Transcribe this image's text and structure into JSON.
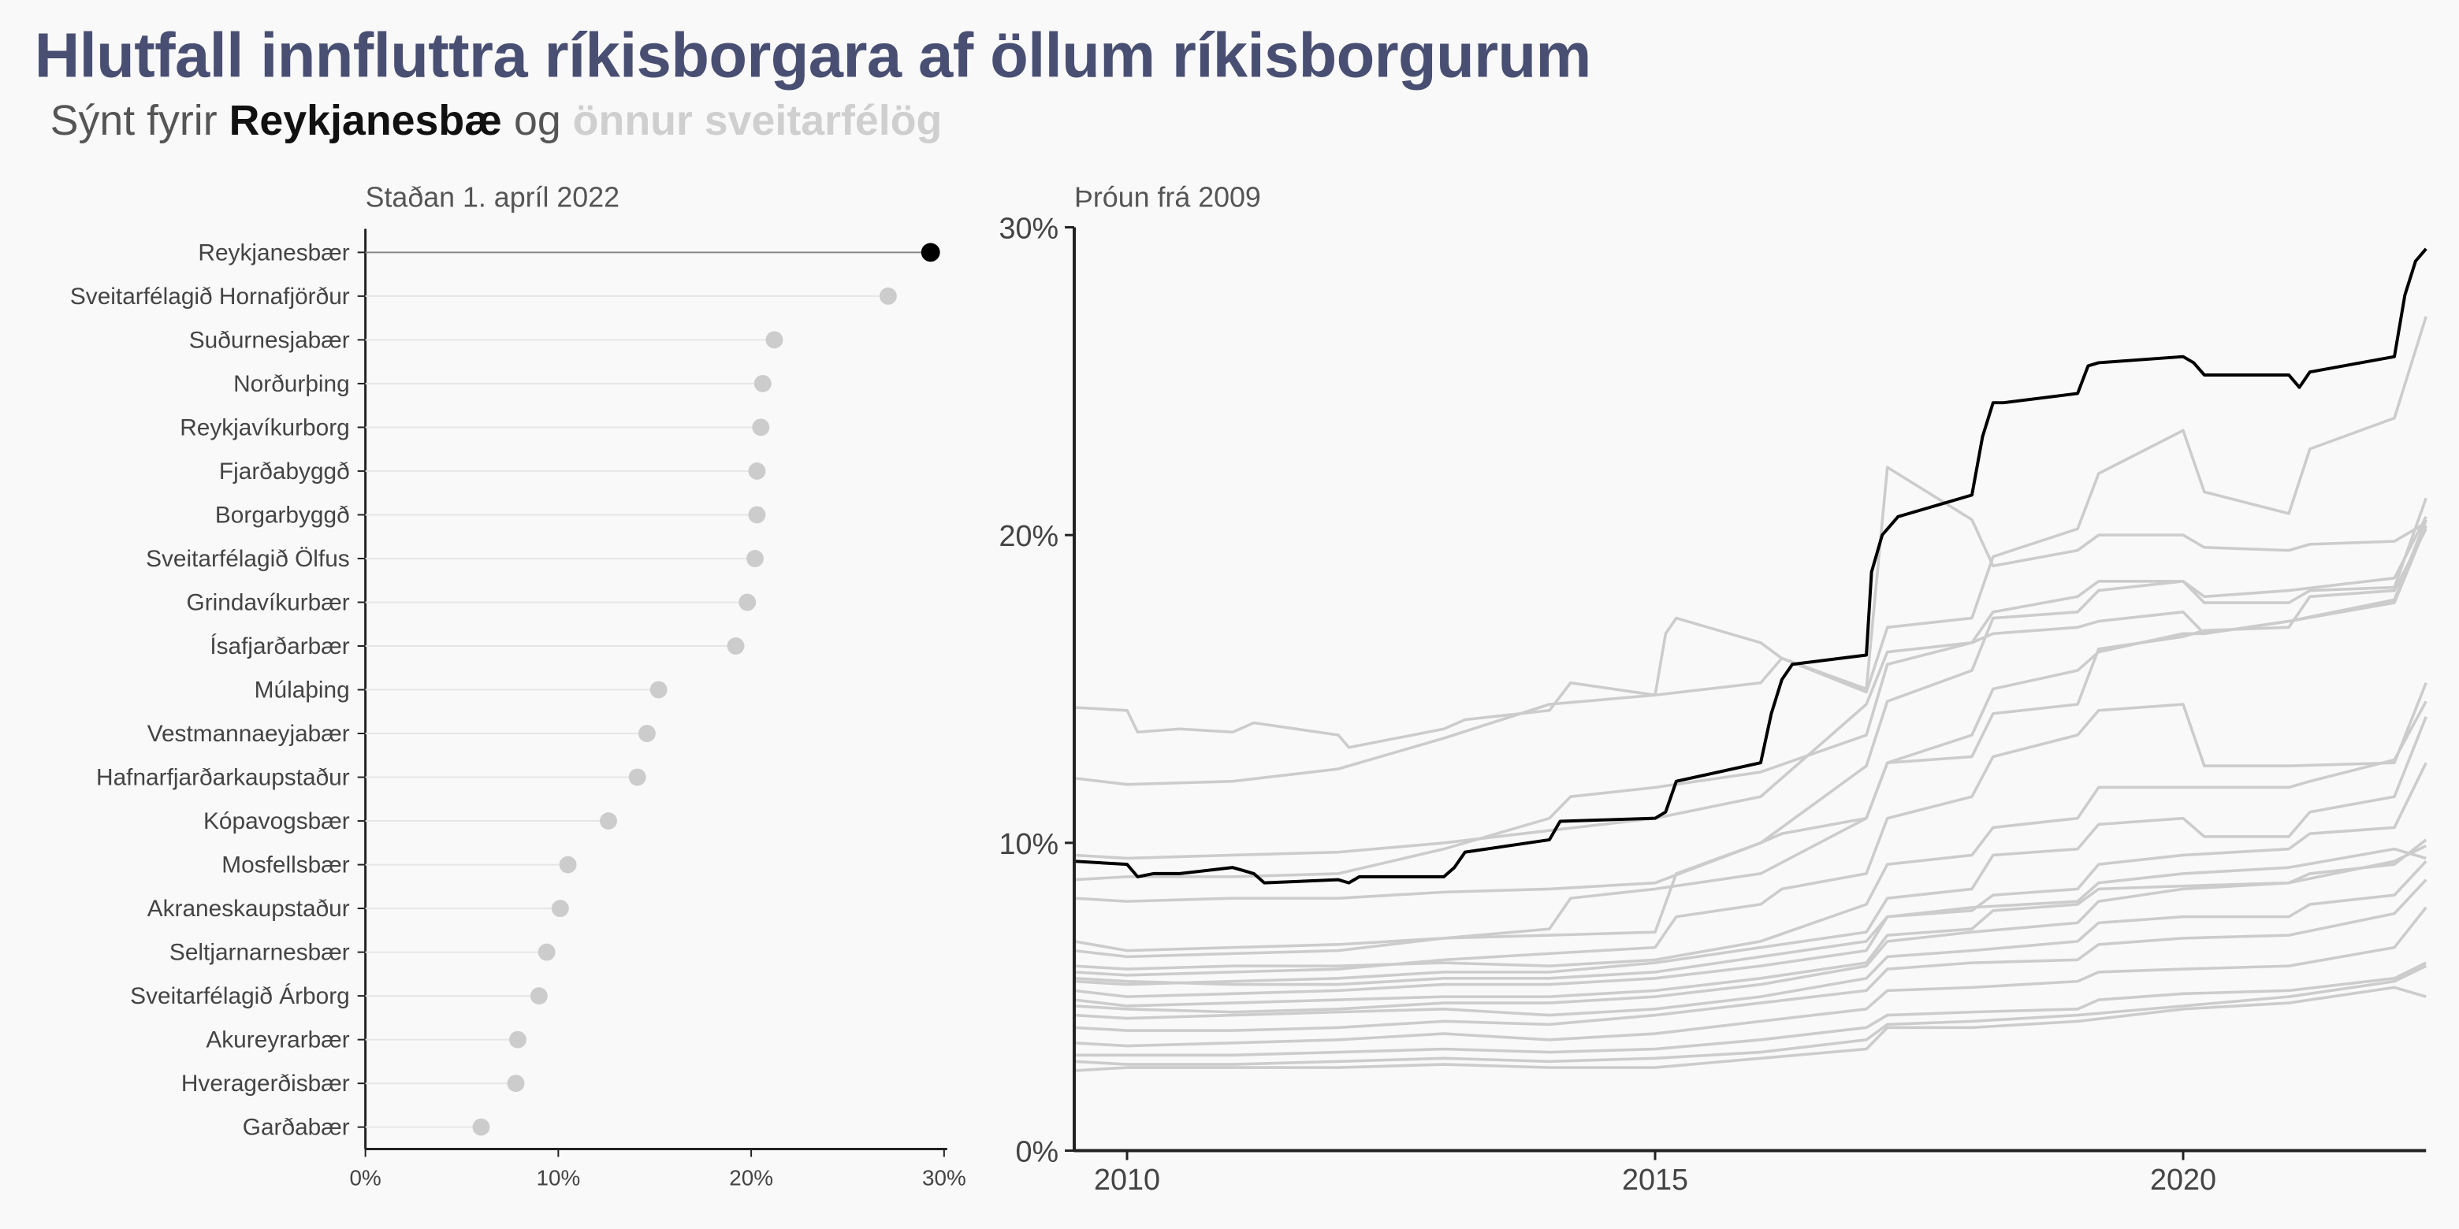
{
  "title": "Hlutfall innfluttra ríkisborgara af öllum ríkisborgurum",
  "subtitle": {
    "prefix": "Sýnt fyrir",
    "highlight": "Reykjanesbæ",
    "middle": "og",
    "muted": "önnur sveitarfélög"
  },
  "colors": {
    "highlight": "#000000",
    "other": "#cccccc",
    "title": "#494f72"
  },
  "chart_data": [
    {
      "type": "lollipop",
      "title": "Staðan 1. apríl 2022",
      "xlim": [
        0,
        30
      ],
      "xticks": [
        "0%",
        "10%",
        "20%",
        "30%"
      ],
      "xtick_values": [
        0,
        10,
        20,
        30
      ],
      "highlight": "Reykjanesbær",
      "categories": [
        "Reykjanesbær",
        "Sveitarfélagið Hornafjörður",
        "Suðurnesjabær",
        "Norðurþing",
        "Reykjavíkurborg",
        "Fjarðabyggð",
        "Borgarbyggð",
        "Sveitarfélagið Ölfus",
        "Grindavíkurbær",
        "Ísafjarðarbær",
        "Múlaþing",
        "Vestmannaeyjabær",
        "Hafnarfjarðarkaupstaður",
        "Kópavogsbær",
        "Mosfellsbær",
        "Akraneskaupstaður",
        "Seltjarnarnesbær",
        "Sveitarfélagið Árborg",
        "Akureyrarbær",
        "Hveragerðisbær",
        "Garðabær"
      ],
      "values": [
        29.3,
        27.1,
        21.2,
        20.6,
        20.5,
        20.3,
        20.3,
        20.2,
        19.8,
        19.2,
        15.2,
        14.6,
        14.1,
        12.6,
        10.5,
        10.1,
        9.4,
        9.0,
        7.9,
        7.8,
        6.0
      ]
    },
    {
      "type": "line",
      "title": "Þróun frá 2009",
      "xlim": [
        2009.5,
        2022.3
      ],
      "ylim": [
        0,
        30
      ],
      "yticks": [
        "0%",
        "10%",
        "20%",
        "30%"
      ],
      "ytick_values": [
        0,
        10,
        20,
        30
      ],
      "xticks": [
        "2010",
        "2015",
        "2020"
      ],
      "xtick_values": [
        2010,
        2015,
        2020
      ],
      "highlight_series": {
        "name": "Reykjanesbær",
        "x": [
          2009.5,
          2010.0,
          2010.1,
          2010.25,
          2010.5,
          2011.0,
          2011.1,
          2011.2,
          2011.3,
          2012.0,
          2012.1,
          2012.2,
          2013.0,
          2013.1,
          2013.2,
          2014.0,
          2014.1,
          2015.0,
          2015.1,
          2015.2,
          2016.0,
          2016.1,
          2016.2,
          2016.3,
          2017.0,
          2017.05,
          2017.15,
          2017.3,
          2018.0,
          2018.1,
          2018.2,
          2018.3,
          2019.0,
          2019.1,
          2019.2,
          2020.0,
          2020.1,
          2020.2,
          2021.0,
          2021.1,
          2021.2,
          2022.0,
          2022.1,
          2022.2,
          2022.3
        ],
        "y": [
          9.4,
          9.3,
          8.9,
          9.0,
          9.0,
          9.2,
          9.1,
          9.0,
          8.7,
          8.8,
          8.7,
          8.9,
          8.9,
          9.2,
          9.7,
          10.1,
          10.7,
          10.8,
          11.0,
          12.0,
          12.6,
          14.2,
          15.3,
          15.8,
          16.1,
          18.8,
          20.0,
          20.6,
          21.3,
          23.2,
          24.3,
          24.3,
          24.6,
          25.5,
          25.6,
          25.8,
          25.6,
          25.2,
          25.2,
          24.8,
          25.3,
          25.8,
          27.8,
          28.9,
          29.3
        ]
      },
      "other_series": [
        {
          "x": [
            2009.5,
            2010.0,
            2010.1,
            2010.5,
            2011.0,
            2011.2,
            2012.0,
            2012.1,
            2013.0,
            2013.2,
            2014.0,
            2014.2,
            2015.0,
            2015.1,
            2015.2,
            2016.0,
            2016.2,
            2017.0,
            2017.2,
            2018.0,
            2018.2,
            2019.0,
            2019.2,
            2020.0,
            2020.2,
            2021.0,
            2021.2,
            2022.0,
            2022.3
          ],
          "y": [
            14.4,
            14.3,
            13.6,
            13.7,
            13.6,
            13.9,
            13.5,
            13.1,
            13.7,
            14.0,
            14.3,
            15.2,
            14.8,
            16.8,
            17.3,
            16.5,
            16.0,
            15.0,
            22.2,
            20.5,
            19.0,
            19.5,
            20.0,
            20.0,
            19.6,
            19.5,
            19.7,
            19.8,
            20.4
          ]
        },
        {
          "x": [
            2009.5,
            2010.0,
            2011.0,
            2012.0,
            2013.0,
            2014.0,
            2015.0,
            2016.0,
            2016.2,
            2017.0,
            2017.2,
            2018.0,
            2018.2,
            2019.0,
            2019.2,
            2020.0,
            2020.2,
            2021.0,
            2021.2,
            2022.0,
            2022.3
          ],
          "y": [
            12.1,
            11.9,
            12.0,
            12.4,
            13.4,
            14.5,
            14.8,
            15.2,
            16.0,
            14.9,
            17.0,
            17.3,
            19.3,
            20.2,
            22.0,
            23.4,
            21.4,
            20.7,
            22.8,
            23.8,
            27.1
          ]
        },
        {
          "x": [
            2009.5,
            2010.0,
            2011.0,
            2012.0,
            2013.0,
            2014.0,
            2015.0,
            2016.0,
            2017.0,
            2017.2,
            2018.0,
            2018.2,
            2019.0,
            2019.2,
            2020.0,
            2020.2,
            2021.0,
            2021.2,
            2022.0,
            2022.3
          ],
          "y": [
            9.6,
            9.5,
            9.6,
            9.7,
            10.0,
            10.4,
            10.8,
            11.5,
            14.5,
            16.2,
            16.5,
            17.5,
            18.0,
            18.5,
            18.5,
            17.8,
            17.8,
            18.2,
            18.3,
            21.2
          ]
        },
        {
          "x": [
            2009.5,
            2010.0,
            2011.0,
            2012.0,
            2013.0,
            2014.0,
            2015.0,
            2016.0,
            2017.0,
            2017.2,
            2018.0,
            2018.2,
            2019.0,
            2019.2,
            2020.0,
            2020.2,
            2021.0,
            2022.0,
            2022.3
          ],
          "y": [
            8.2,
            8.1,
            8.2,
            8.2,
            8.4,
            8.5,
            8.7,
            10.0,
            12.5,
            14.6,
            15.6,
            17.3,
            17.5,
            18.2,
            18.5,
            18.0,
            18.2,
            18.6,
            20.6
          ]
        },
        {
          "x": [
            2009.5,
            2010.0,
            2011.0,
            2012.0,
            2013.0,
            2013.5,
            2014.0,
            2014.2,
            2015.0,
            2016.0,
            2017.0,
            2017.2,
            2018.0,
            2018.2,
            2019.0,
            2019.2,
            2020.0,
            2020.2,
            2021.0,
            2022.0,
            2022.3
          ],
          "y": [
            8.8,
            8.9,
            8.9,
            9.0,
            9.8,
            10.3,
            10.8,
            11.5,
            11.8,
            12.3,
            13.5,
            15.8,
            16.5,
            16.8,
            17.0,
            17.2,
            17.5,
            16.8,
            17.2,
            17.9,
            20.5
          ]
        },
        {
          "x": [
            2009.5,
            2010.0,
            2011.0,
            2012.0,
            2013.0,
            2014.0,
            2014.2,
            2015.0,
            2016.0,
            2017.0,
            2017.2,
            2018.0,
            2018.2,
            2019.0,
            2019.2,
            2020.0,
            2020.2,
            2021.0,
            2022.0,
            2022.3
          ],
          "y": [
            6.5,
            6.3,
            6.4,
            6.5,
            6.9,
            7.2,
            8.2,
            8.5,
            9.0,
            10.8,
            12.6,
            13.5,
            15.0,
            15.6,
            16.2,
            16.8,
            16.8,
            17.2,
            17.8,
            20.3
          ]
        },
        {
          "x": [
            2009.5,
            2010.0,
            2011.0,
            2012.0,
            2013.0,
            2014.0,
            2015.0,
            2015.2,
            2016.0,
            2016.2,
            2017.0,
            2017.2,
            2018.0,
            2018.2,
            2019.0,
            2019.2,
            2020.0,
            2020.2,
            2021.0,
            2021.2,
            2022.0,
            2022.3
          ],
          "y": [
            6.8,
            6.5,
            6.6,
            6.7,
            6.9,
            7.0,
            7.1,
            9.0,
            10.0,
            10.3,
            10.8,
            12.6,
            12.8,
            14.2,
            14.5,
            16.3,
            16.7,
            16.9,
            17.0,
            18.0,
            18.2,
            20.2
          ]
        },
        {
          "x": [
            2009.5,
            2010.0,
            2011.0,
            2012.0,
            2013.0,
            2014.0,
            2015.0,
            2015.2,
            2016.0,
            2016.2,
            2017.0,
            2017.2,
            2018.0,
            2018.2,
            2019.0,
            2019.2,
            2020.0,
            2020.2,
            2021.0,
            2022.0,
            2022.3
          ],
          "y": [
            5.8,
            5.7,
            5.8,
            5.9,
            6.2,
            6.4,
            6.6,
            7.6,
            8.0,
            8.5,
            9.0,
            10.8,
            11.5,
            12.8,
            13.5,
            14.3,
            14.5,
            12.5,
            12.5,
            12.6,
            15.2
          ]
        },
        {
          "x": [
            2009.5,
            2010.0,
            2011.0,
            2012.0,
            2013.0,
            2014.0,
            2015.0,
            2016.0,
            2017.0,
            2017.2,
            2018.0,
            2018.2,
            2019.0,
            2019.2,
            2020.0,
            2021.0,
            2021.2,
            2022.0,
            2022.3
          ],
          "y": [
            6.0,
            5.9,
            6.0,
            6.0,
            6.1,
            6.0,
            6.2,
            6.8,
            8.0,
            9.3,
            9.6,
            10.5,
            10.8,
            11.8,
            11.8,
            11.8,
            12.0,
            12.7,
            14.6
          ]
        },
        {
          "x": [
            2009.5,
            2010.0,
            2011.0,
            2012.0,
            2013.0,
            2014.0,
            2015.0,
            2016.0,
            2017.0,
            2017.2,
            2018.0,
            2018.2,
            2019.0,
            2019.2,
            2020.0,
            2020.2,
            2021.0,
            2021.2,
            2022.0,
            2022.3
          ],
          "y": [
            5.5,
            5.4,
            5.5,
            5.6,
            5.8,
            5.8,
            6.1,
            6.6,
            7.1,
            8.2,
            8.5,
            9.6,
            9.8,
            10.6,
            10.8,
            10.2,
            10.2,
            11.0,
            11.5,
            14.1
          ]
        },
        {
          "x": [
            2009.5,
            2010.0,
            2011.0,
            2012.0,
            2013.0,
            2014.0,
            2015.0,
            2016.0,
            2017.0,
            2017.2,
            2018.0,
            2018.2,
            2019.0,
            2019.2,
            2020.0,
            2021.0,
            2021.2,
            2022.0,
            2022.3
          ],
          "y": [
            5.2,
            5.0,
            5.1,
            5.2,
            5.4,
            5.4,
            5.6,
            6.0,
            6.5,
            7.6,
            7.8,
            8.3,
            8.5,
            9.3,
            9.6,
            9.8,
            10.3,
            10.5,
            12.6
          ]
        },
        {
          "x": [
            2009.5,
            2010.0,
            2011.0,
            2012.0,
            2013.0,
            2014.0,
            2015.0,
            2016.0,
            2017.0,
            2017.2,
            2018.0,
            2018.2,
            2019.0,
            2019.2,
            2020.0,
            2021.0,
            2021.2,
            2022.0,
            2022.3
          ],
          "y": [
            4.9,
            4.7,
            4.8,
            4.9,
            5.0,
            5.0,
            5.2,
            5.6,
            6.1,
            7.0,
            7.2,
            7.8,
            8.0,
            8.5,
            8.6,
            8.7,
            9.0,
            9.3,
            10.1
          ]
        },
        {
          "x": [
            2009.5,
            2010.0,
            2011.0,
            2012.0,
            2013.0,
            2014.0,
            2015.0,
            2016.0,
            2017.0,
            2017.2,
            2018.0,
            2019.0,
            2019.2,
            2020.0,
            2021.0,
            2021.2,
            2022.0,
            2022.3
          ],
          "y": [
            4.4,
            4.3,
            4.4,
            4.5,
            4.6,
            4.4,
            4.6,
            5.0,
            5.6,
            6.3,
            6.5,
            6.8,
            7.4,
            7.6,
            7.6,
            8.0,
            8.3,
            9.4
          ]
        },
        {
          "x": [
            2009.5,
            2010.0,
            2011.0,
            2012.0,
            2013.0,
            2014.0,
            2015.0,
            2016.0,
            2017.0,
            2017.2,
            2018.0,
            2019.0,
            2019.2,
            2020.0,
            2021.0,
            2022.0,
            2022.3
          ],
          "y": [
            4.0,
            3.9,
            3.9,
            4.0,
            4.2,
            4.1,
            4.4,
            4.8,
            5.2,
            5.9,
            6.1,
            6.2,
            6.7,
            6.9,
            7.0,
            7.7,
            8.8
          ]
        },
        {
          "x": [
            2009.5,
            2010.0,
            2011.0,
            2012.0,
            2013.0,
            2014.0,
            2015.0,
            2016.0,
            2017.0,
            2017.2,
            2018.0,
            2019.0,
            2019.2,
            2020.0,
            2021.0,
            2022.0,
            2022.3
          ],
          "y": [
            3.5,
            3.4,
            3.5,
            3.6,
            3.8,
            3.6,
            3.8,
            4.2,
            4.6,
            5.2,
            5.3,
            5.5,
            5.8,
            5.9,
            6.0,
            6.6,
            7.9
          ]
        },
        {
          "x": [
            2009.5,
            2010.0,
            2011.0,
            2012.0,
            2013.0,
            2014.0,
            2015.0,
            2016.0,
            2017.0,
            2017.2,
            2018.0,
            2019.0,
            2019.2,
            2020.0,
            2021.0,
            2022.0,
            2022.3
          ],
          "y": [
            3.1,
            3.1,
            3.1,
            3.2,
            3.3,
            3.2,
            3.3,
            3.6,
            4.0,
            4.4,
            4.5,
            4.6,
            4.9,
            5.1,
            5.2,
            5.6,
            6.1
          ]
        },
        {
          "x": [
            2009.5,
            2010.0,
            2011.0,
            2012.0,
            2013.0,
            2014.0,
            2015.0,
            2016.0,
            2017.0,
            2017.2,
            2018.0,
            2019.0,
            2020.0,
            2021.0,
            2022.0,
            2022.3
          ],
          "y": [
            2.6,
            2.7,
            2.7,
            2.7,
            2.8,
            2.7,
            2.7,
            3.0,
            3.3,
            4.0,
            4.0,
            4.2,
            4.6,
            4.8,
            5.3,
            5.0
          ]
        },
        {
          "x": [
            2009.5,
            2010.0,
            2011.0,
            2012.0,
            2013.0,
            2014.0,
            2015.0,
            2016.0,
            2017.0,
            2017.2,
            2018.0,
            2019.0,
            2020.0,
            2021.0,
            2022.0,
            2022.3
          ],
          "y": [
            2.9,
            2.8,
            2.8,
            2.9,
            3.0,
            2.9,
            3.0,
            3.2,
            3.6,
            4.1,
            4.2,
            4.4,
            4.7,
            5.0,
            5.5,
            6.0
          ]
        },
        {
          "x": [
            2009.5,
            2010.0,
            2011.0,
            2012.0,
            2013.0,
            2014.0,
            2015.0,
            2016.0,
            2017.0,
            2017.2,
            2018.0,
            2019.0,
            2019.2,
            2020.0,
            2021.0,
            2022.0,
            2022.3
          ],
          "y": [
            5.6,
            5.5,
            5.4,
            5.4,
            5.6,
            5.6,
            5.8,
            6.3,
            6.8,
            7.6,
            7.9,
            8.1,
            8.7,
            9.0,
            9.2,
            9.8,
            9.5
          ]
        },
        {
          "x": [
            2009.5,
            2010.0,
            2011.0,
            2012.0,
            2013.0,
            2014.0,
            2015.0,
            2016.0,
            2017.0,
            2017.2,
            2018.0,
            2019.0,
            2019.2,
            2020.0,
            2021.0,
            2022.0,
            2022.3
          ],
          "y": [
            4.7,
            4.6,
            4.5,
            4.6,
            4.8,
            4.8,
            5.0,
            5.4,
            6.0,
            6.8,
            7.1,
            7.4,
            8.1,
            8.5,
            8.7,
            9.4,
            9.9
          ]
        }
      ]
    }
  ]
}
